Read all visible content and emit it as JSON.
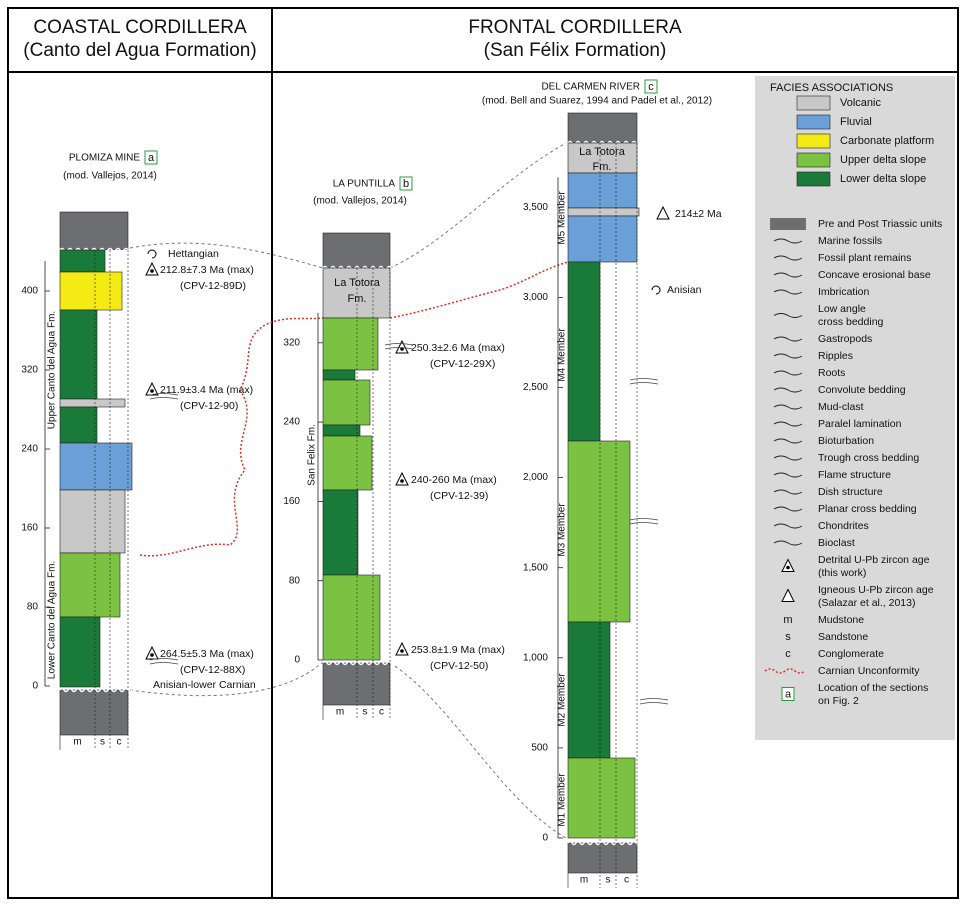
{
  "header": {
    "coastal": {
      "title": "COASTAL CORDILLERA",
      "subtitle": "(Canto del Agua Formation)"
    },
    "frontal": {
      "title": "FRONTAL CORDILLERA",
      "subtitle": "(San Félix Formation)"
    }
  },
  "sections": [
    {
      "name": "PLOMIZA MINE",
      "letter": "a",
      "source": "(mod. Vallejos, 2014)",
      "scale": [
        "0",
        "80",
        "160",
        "240",
        "320",
        "400"
      ],
      "units": [
        "Upper Canto del Agua Fm.",
        "Lower Canto del Agua Fm."
      ],
      "annotations": [
        "Hettangian",
        "212.8±7.3 Ma (max)",
        "(CPV-12-89D)",
        "211.9±3.4 Ma (max)",
        "(CPV-12-90)",
        "264.5±5.3 Ma (max)",
        "(CPV-12-88X)",
        "Anisian-lower Carnian"
      ],
      "grain": [
        "m",
        "s",
        "c"
      ]
    },
    {
      "name": "LA PUNTILLA",
      "letter": "b",
      "source": "(mod. Vallejos, 2014)",
      "scale": [
        "0",
        "80",
        "160",
        "240",
        "320"
      ],
      "units": [
        "San Felix Fm.",
        "La Totora",
        "Fm."
      ],
      "annotations": [
        "250.3±2.6 Ma (max)",
        "(CPV-12-29X)",
        "240-260 Ma (max)",
        "(CPV-12-39)",
        "253.8±1.9 Ma (max)",
        "(CPV-12-50)"
      ],
      "grain": [
        "m",
        "s",
        "c"
      ]
    },
    {
      "name": "DEL CARMEN RIVER",
      "letter": "c",
      "source": "(mod. Bell and Suarez, 1994 and Padel et al., 2012)",
      "scale": [
        "0",
        "500",
        "1,000",
        "1,500",
        "2,000",
        "2,500",
        "3,000",
        "3,500"
      ],
      "units": [
        "M5 Member",
        "M4 Member",
        "M3 Member",
        "M2 Member",
        "M1 Member",
        "La Totora",
        "Fm."
      ],
      "annotations": [
        "214±2 Ma",
        "Anisian"
      ],
      "grain": [
        "m",
        "s",
        "c"
      ]
    }
  ],
  "legend": {
    "title": "FACIES ASSOCIATIONS",
    "facies": [
      "Volcanic",
      "Fluvial",
      "Carbonate platform",
      "Upper delta slope",
      "Lower delta slope"
    ],
    "symbols": [
      {
        "label": [
          "Pre and Post Triassic units"
        ]
      },
      {
        "label": [
          "Marine fossils"
        ]
      },
      {
        "label": [
          "Fossil plant remains"
        ]
      },
      {
        "label": [
          "Concave erosional base"
        ]
      },
      {
        "label": [
          "Imbrication"
        ]
      },
      {
        "label": [
          "Low angle",
          "cross bedding"
        ]
      },
      {
        "label": [
          "Gastropods"
        ]
      },
      {
        "label": [
          "Ripples"
        ]
      },
      {
        "label": [
          "Roots"
        ]
      },
      {
        "label": [
          "Convolute bedding"
        ]
      },
      {
        "label": [
          "Mud-clast"
        ]
      },
      {
        "label": [
          "Paralel lamination"
        ]
      },
      {
        "label": [
          "Bioturbation"
        ]
      },
      {
        "label": [
          "Trough cross bedding"
        ]
      },
      {
        "label": [
          "Flame structure"
        ]
      },
      {
        "label": [
          "Dish structure"
        ]
      },
      {
        "label": [
          "Planar cross bedding"
        ]
      },
      {
        "label": [
          "Chondrites"
        ]
      },
      {
        "label": [
          "Bioclast"
        ]
      },
      {
        "label": [
          "Detrital U-Pb zircon age",
          "(this work)"
        ]
      },
      {
        "label": [
          "Igneous U-Pb zircon age",
          "(Salazar et al., 2013)"
        ]
      },
      {
        "letter": "m",
        "label": [
          "Mudstone"
        ]
      },
      {
        "letter": "s",
        "label": [
          "Sandstone"
        ]
      },
      {
        "letter": "c",
        "label": [
          "Conglomerate"
        ]
      },
      {
        "label": [
          "Carnian Unconformity"
        ]
      },
      {
        "letter": "a",
        "label": [
          "Location of the sections",
          "on Fig. 2"
        ]
      }
    ]
  }
}
